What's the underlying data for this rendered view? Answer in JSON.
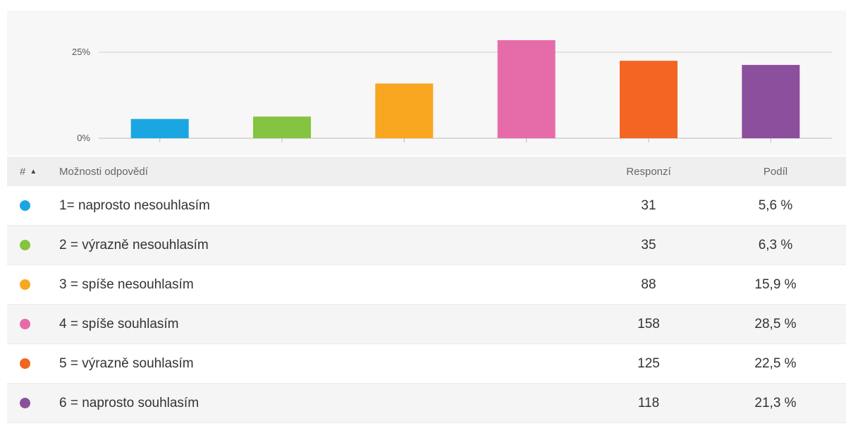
{
  "chart_data": {
    "type": "bar",
    "categories": [
      "1= naprosto nesouhlasím",
      "2 = výrazně nesouhlasím",
      "3 = spíše nesouhlasím",
      "4 = spíše souhlasím",
      "5 = výrazně souhlasím",
      "6 = naprosto souhlasím"
    ],
    "values": [
      5.6,
      6.3,
      15.9,
      28.5,
      22.5,
      21.3
    ],
    "colors": [
      "#1aa7e1",
      "#84c440",
      "#f9a621",
      "#e66ca9",
      "#f26522",
      "#8c4f9e"
    ],
    "yticks": [
      "0%",
      "25%"
    ],
    "ylim": [
      0,
      30
    ],
    "grid": true
  },
  "table": {
    "header": {
      "num": "#",
      "options": "Možnosti odpovědí",
      "responses": "Responzí",
      "share": "Podíl",
      "sort_icon": "sort-ascending-icon"
    },
    "rows": [
      {
        "label": "1= naprosto nesouhlasím",
        "responses": "31",
        "share": "5,6 %",
        "color": "#1aa7e1"
      },
      {
        "label": "2 = výrazně nesouhlasím",
        "responses": "35",
        "share": "6,3 %",
        "color": "#84c440"
      },
      {
        "label": "3 = spíše nesouhlasím",
        "responses": "88",
        "share": "15,9 %",
        "color": "#f9a621"
      },
      {
        "label": "4 = spíše souhlasím",
        "responses": "158",
        "share": "28,5 %",
        "color": "#e66ca9"
      },
      {
        "label": "5 = výrazně souhlasím",
        "responses": "125",
        "share": "22,5 %",
        "color": "#f26522"
      },
      {
        "label": "6 = naprosto souhlasím",
        "responses": "118",
        "share": "21,3 %",
        "color": "#8c4f9e"
      }
    ]
  }
}
